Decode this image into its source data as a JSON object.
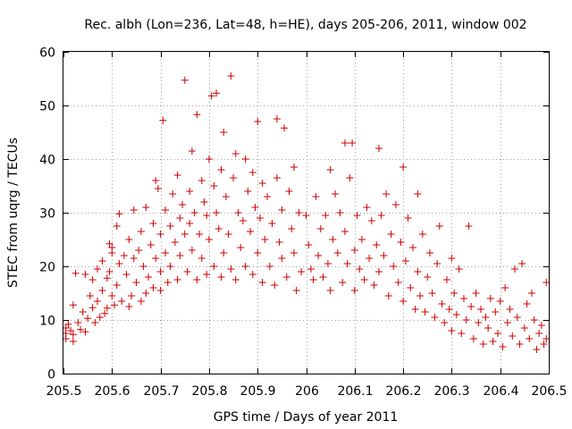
{
  "chart_data": {
    "type": "scatter",
    "title": "Rec. albh (Lon=236, Lat=48, h=HE), days 205-206, 2011, window 002",
    "xlabel": "GPS time / Days of year 2011",
    "ylabel": "STEC from uqrg / TECUs",
    "xlim": [
      205.5,
      206.5
    ],
    "ylim": [
      0,
      60
    ],
    "xticks": [
      205.5,
      205.6,
      205.7,
      205.8,
      205.9,
      206,
      206.1,
      206.2,
      206.3,
      206.4,
      206.5
    ],
    "xtick_labels": [
      "205.5",
      "205.6",
      "205.7",
      "205.8",
      "205.9",
      "206",
      "206.1",
      "206.2",
      "206.3",
      "206.4",
      "206.5"
    ],
    "yticks": [
      0,
      10,
      20,
      30,
      40,
      50,
      60
    ],
    "ytick_labels": [
      "0",
      "10",
      "20",
      "30",
      "40",
      "50",
      "60"
    ],
    "grid": true,
    "marker": "+",
    "color": "#cc0000",
    "points": [
      [
        205.505,
        8.5
      ],
      [
        205.505,
        7.5
      ],
      [
        205.505,
        6.5
      ],
      [
        205.51,
        9.2
      ],
      [
        205.515,
        8.0
      ],
      [
        205.52,
        6.0
      ],
      [
        205.52,
        7.3
      ],
      [
        205.52,
        12.8
      ],
      [
        205.525,
        18.7
      ],
      [
        205.53,
        9.5
      ],
      [
        205.535,
        8.2
      ],
      [
        205.54,
        11.5
      ],
      [
        205.545,
        18.5
      ],
      [
        205.545,
        7.8
      ],
      [
        205.55,
        10.3
      ],
      [
        205.555,
        14.5
      ],
      [
        205.56,
        12.3
      ],
      [
        205.56,
        17.5
      ],
      [
        205.565,
        9.5
      ],
      [
        205.57,
        19.5
      ],
      [
        205.57,
        13.5
      ],
      [
        205.575,
        10.5
      ],
      [
        205.58,
        21.0
      ],
      [
        205.58,
        15.5
      ],
      [
        205.585,
        11.2
      ],
      [
        205.59,
        12.2
      ],
      [
        205.59,
        17.8
      ],
      [
        205.595,
        19.0
      ],
      [
        205.595,
        24.2
      ],
      [
        205.6,
        23.5
      ],
      [
        205.6,
        14.5
      ],
      [
        205.6,
        22.5
      ],
      [
        205.605,
        12.8
      ],
      [
        205.61,
        27.5
      ],
      [
        205.61,
        16.5
      ],
      [
        205.615,
        20.5
      ],
      [
        205.615,
        29.8
      ],
      [
        205.62,
        13.5
      ],
      [
        205.625,
        22.0
      ],
      [
        205.63,
        18.5
      ],
      [
        205.635,
        25.0
      ],
      [
        205.635,
        12.5
      ],
      [
        205.64,
        14.5
      ],
      [
        205.645,
        21.5
      ],
      [
        205.645,
        30.5
      ],
      [
        205.65,
        17.0
      ],
      [
        205.655,
        23.0
      ],
      [
        205.66,
        13.5
      ],
      [
        205.66,
        26.5
      ],
      [
        205.665,
        20.0
      ],
      [
        205.67,
        15.0
      ],
      [
        205.67,
        31.0
      ],
      [
        205.675,
        18.0
      ],
      [
        205.68,
        24.0
      ],
      [
        205.685,
        16.0
      ],
      [
        205.685,
        28.0
      ],
      [
        205.69,
        36.0
      ],
      [
        205.69,
        21.5
      ],
      [
        205.695,
        34.5
      ],
      [
        205.7,
        15.5
      ],
      [
        205.7,
        19.0
      ],
      [
        205.7,
        26.0
      ],
      [
        205.705,
        47.2
      ],
      [
        205.71,
        30.5
      ],
      [
        205.71,
        22.5
      ],
      [
        205.715,
        17.0
      ],
      [
        205.72,
        27.5
      ],
      [
        205.72,
        20.0
      ],
      [
        205.725,
        33.5
      ],
      [
        205.73,
        24.5
      ],
      [
        205.735,
        17.5
      ],
      [
        205.735,
        37.0
      ],
      [
        205.74,
        29.0
      ],
      [
        205.74,
        22.0
      ],
      [
        205.745,
        31.5
      ],
      [
        205.75,
        54.7
      ],
      [
        205.75,
        26.0
      ],
      [
        205.755,
        19.0
      ],
      [
        205.76,
        34.0
      ],
      [
        205.76,
        28.0
      ],
      [
        205.765,
        41.5
      ],
      [
        205.765,
        23.0
      ],
      [
        205.77,
        30.0
      ],
      [
        205.775,
        17.5
      ],
      [
        205.775,
        48.3
      ],
      [
        205.78,
        26.0
      ],
      [
        205.785,
        36.0
      ],
      [
        205.785,
        21.5
      ],
      [
        205.79,
        32.0
      ],
      [
        205.795,
        18.5
      ],
      [
        205.795,
        29.5
      ],
      [
        205.8,
        40.0
      ],
      [
        205.8,
        25.0
      ],
      [
        205.805,
        51.8
      ],
      [
        205.81,
        35.0
      ],
      [
        205.81,
        20.0
      ],
      [
        205.815,
        52.3
      ],
      [
        205.815,
        30.0
      ],
      [
        205.82,
        27.0
      ],
      [
        205.825,
        38.0
      ],
      [
        205.825,
        18.0
      ],
      [
        205.83,
        45.0
      ],
      [
        205.83,
        22.5
      ],
      [
        205.835,
        33.0
      ],
      [
        205.84,
        26.0
      ],
      [
        205.845,
        55.5
      ],
      [
        205.845,
        19.5
      ],
      [
        205.85,
        36.5
      ],
      [
        205.855,
        41.0
      ],
      [
        205.855,
        17.5
      ],
      [
        205.86,
        30.0
      ],
      [
        205.865,
        23.5
      ],
      [
        205.87,
        28.5
      ],
      [
        205.875,
        40.0
      ],
      [
        205.875,
        20.0
      ],
      [
        205.88,
        34.0
      ],
      [
        205.885,
        26.5
      ],
      [
        205.89,
        18.5
      ],
      [
        205.89,
        37.5
      ],
      [
        205.895,
        31.0
      ],
      [
        205.9,
        47.0
      ],
      [
        205.9,
        22.5
      ],
      [
        205.905,
        29.0
      ],
      [
        205.91,
        17.0
      ],
      [
        205.91,
        35.5
      ],
      [
        205.915,
        25.0
      ],
      [
        205.92,
        33.0
      ],
      [
        205.925,
        20.0
      ],
      [
        205.93,
        28.0
      ],
      [
        205.935,
        16.5
      ],
      [
        205.94,
        47.5
      ],
      [
        205.94,
        36.5
      ],
      [
        205.945,
        24.5
      ],
      [
        205.95,
        30.5
      ],
      [
        205.95,
        21.5
      ],
      [
        205.955,
        45.8
      ],
      [
        205.96,
        18.0
      ],
      [
        205.965,
        34.0
      ],
      [
        205.97,
        27.0
      ],
      [
        205.975,
        38.5
      ],
      [
        205.975,
        22.5
      ],
      [
        205.98,
        15.5
      ],
      [
        205.985,
        30.0
      ],
      [
        205.99,
        19.0
      ],
      [
        206.0,
        29.5
      ],
      [
        206.005,
        24.0
      ],
      [
        206.01,
        19.5
      ],
      [
        206.015,
        17.5
      ],
      [
        206.02,
        33.0
      ],
      [
        206.025,
        22.0
      ],
      [
        206.03,
        27.0
      ],
      [
        206.035,
        18.0
      ],
      [
        206.04,
        29.5
      ],
      [
        206.045,
        20.5
      ],
      [
        206.05,
        15.5
      ],
      [
        206.05,
        38.0
      ],
      [
        206.055,
        25.0
      ],
      [
        206.06,
        33.5
      ],
      [
        206.065,
        22.5
      ],
      [
        206.07,
        30.0
      ],
      [
        206.075,
        17.0
      ],
      [
        206.08,
        43.0
      ],
      [
        206.08,
        26.5
      ],
      [
        206.085,
        20.5
      ],
      [
        206.09,
        36.5
      ],
      [
        206.095,
        43.0
      ],
      [
        206.1,
        23.0
      ],
      [
        206.1,
        15.5
      ],
      [
        206.105,
        29.5
      ],
      [
        206.11,
        19.5
      ],
      [
        206.115,
        25.0
      ],
      [
        206.12,
        17.5
      ],
      [
        206.125,
        31.0
      ],
      [
        206.13,
        21.5
      ],
      [
        206.135,
        28.5
      ],
      [
        206.14,
        16.5
      ],
      [
        206.145,
        24.0
      ],
      [
        206.15,
        42.0
      ],
      [
        206.15,
        19.0
      ],
      [
        206.155,
        29.5
      ],
      [
        206.16,
        22.0
      ],
      [
        206.165,
        33.5
      ],
      [
        206.17,
        14.5
      ],
      [
        206.175,
        26.0
      ],
      [
        206.18,
        20.0
      ],
      [
        206.185,
        31.5
      ],
      [
        206.19,
        17.0
      ],
      [
        206.195,
        24.5
      ],
      [
        206.2,
        38.5
      ],
      [
        206.2,
        13.5
      ],
      [
        206.205,
        21.0
      ],
      [
        206.21,
        29.0
      ],
      [
        206.215,
        16.0
      ],
      [
        206.22,
        23.5
      ],
      [
        206.225,
        12.0
      ],
      [
        206.23,
        33.5
      ],
      [
        206.23,
        19.0
      ],
      [
        206.235,
        14.5
      ],
      [
        206.24,
        26.0
      ],
      [
        206.245,
        11.5
      ],
      [
        206.25,
        18.0
      ],
      [
        206.255,
        22.5
      ],
      [
        206.26,
        15.0
      ],
      [
        206.265,
        10.5
      ],
      [
        206.27,
        20.5
      ],
      [
        206.275,
        27.5
      ],
      [
        206.28,
        13.0
      ],
      [
        206.285,
        9.5
      ],
      [
        206.29,
        17.5
      ],
      [
        206.295,
        12.0
      ],
      [
        206.3,
        21.5
      ],
      [
        206.3,
        8.0
      ],
      [
        206.305,
        15.0
      ],
      [
        206.31,
        11.0
      ],
      [
        206.315,
        19.5
      ],
      [
        206.32,
        7.5
      ],
      [
        206.325,
        14.0
      ],
      [
        206.33,
        10.0
      ],
      [
        206.335,
        27.5
      ],
      [
        206.34,
        12.5
      ],
      [
        206.345,
        6.5
      ],
      [
        206.35,
        15.0
      ],
      [
        206.355,
        9.5
      ],
      [
        206.36,
        12.0
      ],
      [
        206.365,
        5.5
      ],
      [
        206.37,
        10.5
      ],
      [
        206.375,
        8.5
      ],
      [
        206.38,
        14.0
      ],
      [
        206.385,
        6.0
      ],
      [
        206.39,
        11.5
      ],
      [
        206.395,
        7.5
      ],
      [
        206.4,
        13.5
      ],
      [
        206.405,
        5.0
      ],
      [
        206.41,
        16.0
      ],
      [
        206.415,
        9.5
      ],
      [
        206.42,
        12.0
      ],
      [
        206.425,
        7.0
      ],
      [
        206.43,
        19.5
      ],
      [
        206.435,
        10.5
      ],
      [
        206.44,
        5.5
      ],
      [
        206.445,
        20.5
      ],
      [
        206.45,
        8.5
      ],
      [
        206.455,
        13.0
      ],
      [
        206.46,
        6.5
      ],
      [
        206.465,
        15.0
      ],
      [
        206.47,
        10.0
      ],
      [
        206.475,
        4.5
      ],
      [
        206.48,
        7.5
      ],
      [
        206.485,
        9.0
      ],
      [
        206.49,
        5.5
      ],
      [
        206.495,
        17.0
      ],
      [
        206.495,
        6.5
      ]
    ]
  }
}
